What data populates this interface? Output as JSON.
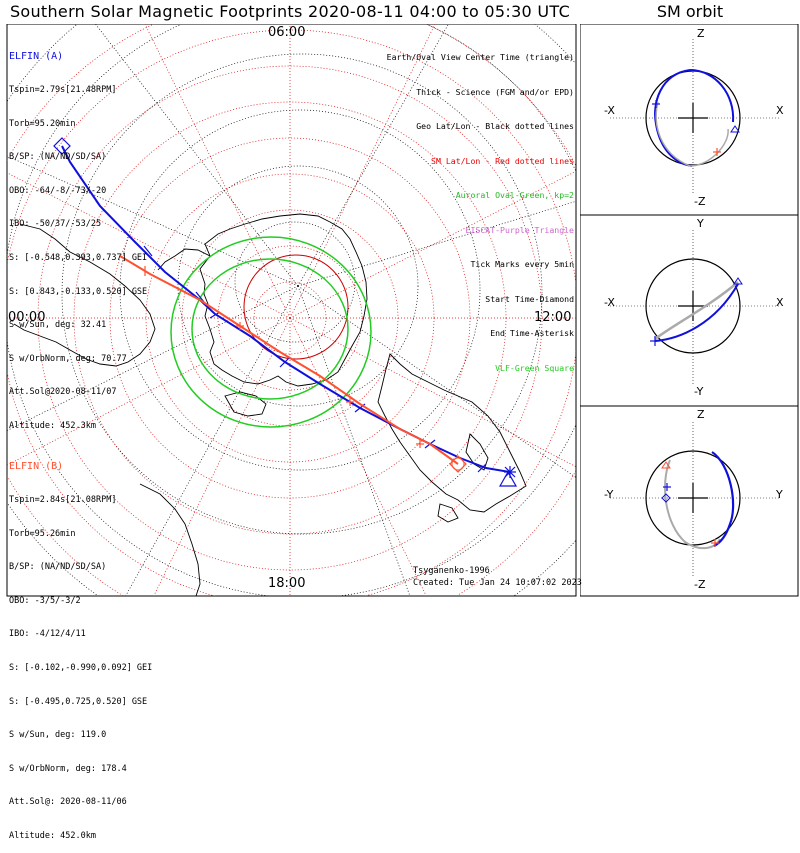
{
  "title": "Southern Solar Magnetic Footprints 2020-08-11 04:00 to 05:30 UTC",
  "orbit_title": "SM orbit",
  "colors": {
    "elfin_a": "#1010dd",
    "elfin_b": "#ff5030",
    "oval": "#22cc22",
    "geo_grid": "#000000",
    "sm_grid": "#dd0000"
  },
  "elfin_a": {
    "name": "ELFIN (A)",
    "lines": [
      "Tspin=2.79s[21.48RPM]",
      "Torb=95.20min",
      "B/SP: (NA/ND/SD/SA)",
      "OBO: -64/-8/-73/-20",
      "IBO: -50/37/-53/25",
      "S: [-0.548,0.393,0.737] GEI",
      "S: [0.843,-0.133,0.520] GSE",
      "S w/Sun, deg: 32.41",
      "S w/OrbNorm, deg: 70.77",
      "Att.Sol@2020-08-11/07",
      "Altitude: 452.3km"
    ]
  },
  "elfin_b": {
    "name": "ELFIN (B)",
    "lines": [
      "Tspin=2.84s[21.08RPM]",
      "Torb=95.26min",
      "B/SP: (NA/ND/SD/SA)",
      "OBO: -3/5/-3/2",
      "IBO: -4/12/4/11",
      "S: [-0.102,-0.990,0.092] GEI",
      "S: [-0.495,0.725,0.520] GSE",
      "S w/Sun, deg: 119.0",
      "S w/OrbNorm, deg: 178.4",
      "Att.Sol@: 2020-08-11/06",
      "Altitude: 452.0km"
    ]
  },
  "legend": [
    {
      "text": "Earth/Oval View Center Time (triangle)",
      "color": "#000000"
    },
    {
      "text": "Thick - Science (FGM and/or EPD)",
      "color": "#000000"
    },
    {
      "text": "Geo Lat/Lon - Black dotted lines",
      "color": "#000000"
    },
    {
      "text": "SM Lat/Lon - Red dotted lines",
      "color": "#ee0000"
    },
    {
      "text": "Auroral Oval-Green, kp=2",
      "color": "#22bb22"
    },
    {
      "text": "EISCAT-Purple Triangle",
      "color": "#cc66cc"
    },
    {
      "text": "Tick Marks every 5min",
      "color": "#000000"
    },
    {
      "text": "Start Time-Diamond",
      "color": "#000000"
    },
    {
      "text": "End Time-Asterisk",
      "color": "#000000"
    },
    {
      "text": "VLF-Green Square",
      "color": "#22cc22"
    }
  ],
  "clock_labels": {
    "top": "06:00",
    "left": "00:00",
    "right": "12:00",
    "bottom": "18:00"
  },
  "credit": {
    "author": "Tsyganenko-1996",
    "created": "Created: Tue Jan 24 10:07:02 2023"
  },
  "orbit_panels": [
    {
      "top": "Z",
      "bottom": "-Z",
      "left": "-X",
      "right": "X"
    },
    {
      "top": "Y",
      "bottom": "-Y",
      "left": "-X",
      "right": "X"
    },
    {
      "top": "Z",
      "bottom": "-Z",
      "left": "-Y",
      "right": "Y"
    }
  ]
}
